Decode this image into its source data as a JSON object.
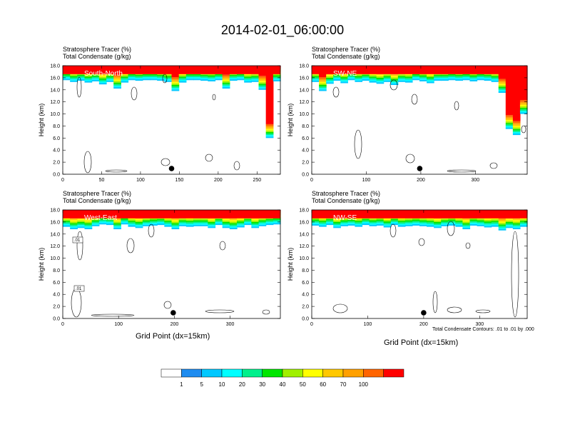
{
  "title": "2014-02-01_06:00:00",
  "panels": [
    {
      "tracer_label": "Stratosphere Tracer   (%)",
      "cond_label": "Total Condensate   (g/kg)",
      "name": "South-North"
    },
    {
      "tracer_label": "Stratosphere Tracer   (%)",
      "cond_label": "Total Condensate   (g/kg)",
      "name": "SW-NE"
    },
    {
      "tracer_label": "Stratosphere Tracer   (%)",
      "cond_label": "Total Condensate   (g/kg)",
      "name": "West-East"
    },
    {
      "tracer_label": "Stratosphere Tracer   (%)",
      "cond_label": "Total Condensate   (g/kg)",
      "name": "NW-SE"
    }
  ],
  "x_axis_label": "Grid Point (dx=15km)",
  "y_axis_label": "Height (km)",
  "contour_note": "Total Condensate Contours: .01 to .01 by .000",
  "contour_labels": [
    ".01",
    ".01"
  ],
  "colorbar": {
    "colors": [
      "#ffffff",
      "#1e8cf0",
      "#00c8ff",
      "#00ffff",
      "#00f08c",
      "#00e600",
      "#a0f000",
      "#ffff00",
      "#ffc800",
      "#ffa000",
      "#ff6400",
      "#ff0000"
    ],
    "labels": [
      "1",
      "5",
      "10",
      "20",
      "30",
      "40",
      "50",
      "60",
      "70",
      "100"
    ]
  },
  "chart_data": [
    {
      "type": "heatmap",
      "name": "South-North",
      "ylabel": "Height (km)",
      "ylim": [
        0,
        18
      ],
      "xlim": [
        0,
        280
      ],
      "yticks": [
        "0.0",
        "2.0",
        "4.0",
        "6.0",
        "8.0",
        "10.0",
        "12.0",
        "14.0",
        "16.0",
        "18.0"
      ],
      "xticks": [
        "0",
        "50",
        "100",
        "150",
        "200",
        "250"
      ],
      "tracer_base_km": [
        15.6,
        15.3,
        15.5,
        15.2,
        15.4,
        14.9,
        15.3,
        14.2,
        15.2,
        15.6,
        15.5,
        15.6,
        15.6,
        15.5,
        15.3,
        13.8,
        15.2,
        15.6,
        15.6,
        15.5,
        15.4,
        15.6,
        14.2,
        15.5,
        15.6,
        15.2,
        15.3,
        14.0,
        6.0,
        15.4
      ],
      "marker_x": 140
    },
    {
      "type": "heatmap",
      "name": "SW-NE",
      "ylabel": "Height (km)",
      "ylim": [
        0,
        18
      ],
      "xlim": [
        0,
        395
      ],
      "yticks": [
        "0.0",
        "2.0",
        "4.0",
        "6.0",
        "8.0",
        "10.0",
        "12.0",
        "14.0",
        "16.0",
        "18.0"
      ],
      "xticks": [
        "0",
        "100",
        "200",
        "300"
      ],
      "tracer_base_km": [
        15.3,
        13.8,
        15.0,
        15.5,
        15.1,
        15.6,
        15.3,
        15.5,
        15.2,
        15.0,
        15.3,
        14.8,
        15.3,
        15.2,
        15.6,
        15.4,
        15.1,
        15.5,
        15.5,
        15.6,
        15.5,
        15.6,
        15.4,
        15.6,
        15.5,
        15.3,
        13.5,
        7.5,
        6.5,
        10.0
      ],
      "marker_x": 198
    },
    {
      "type": "heatmap",
      "name": "West-East",
      "ylabel": "Height (km)",
      "ylim": [
        0,
        18
      ],
      "xlim": [
        0,
        390
      ],
      "yticks": [
        "0.0",
        "2.0",
        "4.0",
        "6.0",
        "8.0",
        "10.0",
        "12.0",
        "14.0",
        "16.0",
        "18.0"
      ],
      "xticks": [
        "0",
        "100",
        "200",
        "300"
      ],
      "tracer_base_km": [
        15.2,
        14.8,
        15.0,
        14.8,
        15.3,
        15.6,
        15.5,
        14.8,
        15.6,
        15.2,
        15.0,
        15.3,
        15.4,
        15.5,
        15.2,
        14.8,
        15.3,
        15.2,
        15.3,
        15.3,
        15.0,
        15.5,
        15.0,
        14.8,
        15.1,
        15.5,
        15.0,
        15.3,
        15.5,
        15.6
      ],
      "marker_x": 198
    },
    {
      "type": "heatmap",
      "name": "NW-SE",
      "ylabel": "Height (km)",
      "ylim": [
        0,
        18
      ],
      "xlim": [
        0,
        385
      ],
      "yticks": [
        "0.0",
        "2.0",
        "4.0",
        "6.0",
        "8.0",
        "10.0",
        "12.0",
        "14.0",
        "16.0",
        "18.0"
      ],
      "xticks": [
        "0",
        "100",
        "200",
        "300"
      ],
      "tracer_base_km": [
        15.4,
        15.2,
        15.5,
        15.0,
        15.3,
        15.4,
        15.2,
        15.5,
        15.3,
        15.4,
        15.1,
        15.5,
        15.2,
        15.3,
        15.4,
        15.3,
        15.2,
        15.0,
        15.3,
        15.4,
        15.2,
        14.8,
        15.4,
        15.3,
        15.1,
        15.2,
        14.6,
        15.0,
        14.8,
        15.2
      ],
      "marker_x": 200
    }
  ]
}
